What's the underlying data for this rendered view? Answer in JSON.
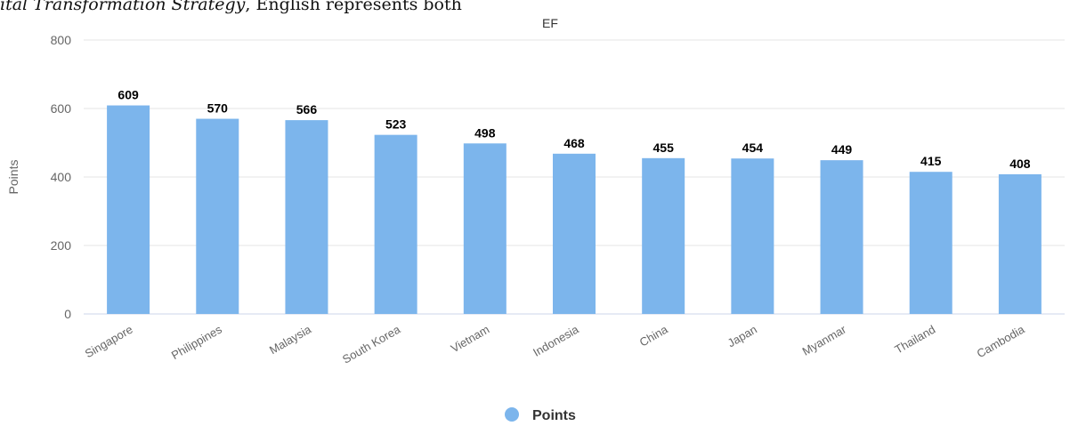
{
  "caption_fragment": {
    "italic": "ital Transformation Strategy",
    "rest": ", English represents both"
  },
  "chart_data": {
    "type": "bar",
    "title": "EF",
    "ylabel": "Points",
    "xlabel": "",
    "categories": [
      "Singapore",
      "Philippines",
      "Malaysia",
      "South Korea",
      "Vietnam",
      "Indonesia",
      "China",
      "Japan",
      "Myanmar",
      "Thailand",
      "Cambodia"
    ],
    "series": [
      {
        "name": "Points",
        "values": [
          609,
          570,
          566,
          523,
          498,
          468,
          455,
          454,
          449,
          415,
          408
        ]
      }
    ],
    "ylim": [
      0,
      800
    ],
    "yticks": [
      "0",
      "200",
      "400",
      "600",
      "800"
    ],
    "grid": true,
    "data_labels": true,
    "legend": "bottom",
    "colors": {
      "bar": "#7cb5ec",
      "grid": "#e6e6e6",
      "axis_text": "#666666",
      "label_text": "#000000"
    }
  }
}
